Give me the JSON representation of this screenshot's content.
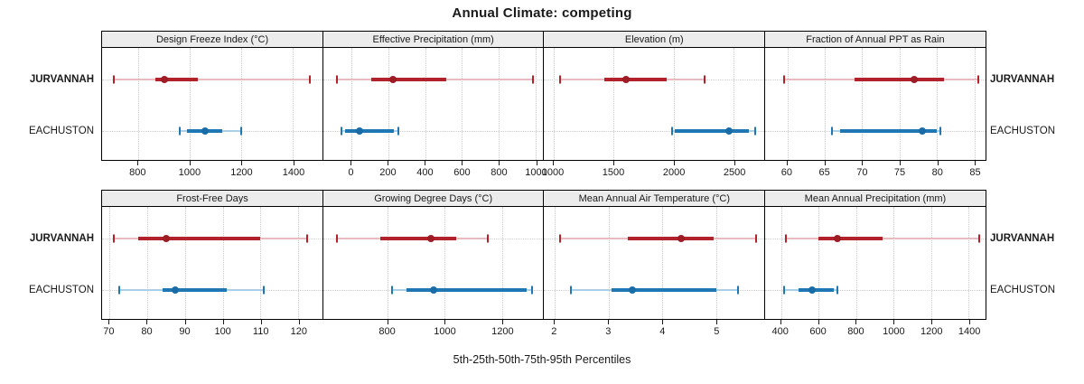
{
  "title": "Annual Climate: competing",
  "caption": "5th-25th-50th-75th-95th Percentiles",
  "row_labels": {
    "left": [
      "JURVANNAH",
      "EACHUSTON",
      "JURVANNAH",
      "EACHUSTON"
    ],
    "right": [
      "JURVANNAH",
      "EACHUSTON",
      "JURVANNAH",
      "EACHUSTON"
    ]
  },
  "groups": [
    {
      "name": "JURVANNAH",
      "line_color": "#b2222b",
      "whisker_color": "#e8bcbe",
      "dot_color": "#9e1c24",
      "bold_label": true
    },
    {
      "name": "EACHUSTON",
      "line_color": "#1f78b4",
      "whisker_color": "#abcfe6",
      "dot_color": "#1a6ca8",
      "bold_label": false
    }
  ],
  "layout": {
    "grid": "2 rows x 4 columns",
    "gridlines": "dotted",
    "percentile_order": [
      "5th",
      "25th",
      "50th",
      "75th",
      "95th"
    ]
  },
  "chart_data": [
    {
      "type": "dotplot",
      "title": "Design Freeze Index (°C)",
      "xlim": [
        660,
        1515
      ],
      "ticks": [
        800,
        1000,
        1200,
        1400
      ],
      "series": [
        {
          "name": "JURVANNAH",
          "percentiles": [
            705,
            865,
            900,
            1030,
            1465
          ]
        },
        {
          "name": "EACHUSTON",
          "percentiles": [
            960,
            990,
            1060,
            1125,
            1200
          ]
        }
      ]
    },
    {
      "type": "dotplot",
      "title": "Effective Precipitation (mm)",
      "xlim": [
        -155,
        1045
      ],
      "ticks": [
        0,
        200,
        400,
        600,
        800,
        1000
      ],
      "series": [
        {
          "name": "JURVANNAH",
          "percentiles": [
            -80,
            105,
            225,
            515,
            985
          ]
        },
        {
          "name": "EACHUSTON",
          "percentiles": [
            -55,
            -35,
            45,
            230,
            255
          ]
        }
      ]
    },
    {
      "type": "dotplot",
      "title": "Elevation (m)",
      "xlim": [
        920,
        2755
      ],
      "ticks": [
        1000,
        1500,
        2000,
        2500
      ],
      "series": [
        {
          "name": "JURVANNAH",
          "percentiles": [
            1050,
            1425,
            1600,
            1940,
            2255
          ]
        },
        {
          "name": "EACHUSTON",
          "percentiles": [
            1985,
            2005,
            2460,
            2625,
            2680
          ]
        }
      ]
    },
    {
      "type": "dotplot",
      "title": "Fraction of Annual PPT as Rain",
      "xlim": [
        57,
        86.5
      ],
      "ticks": [
        60,
        65,
        70,
        75,
        80,
        85
      ],
      "series": [
        {
          "name": "JURVANNAH",
          "percentiles": [
            59.5,
            69,
            77,
            81,
            85.5
          ]
        },
        {
          "name": "EACHUSTON",
          "percentiles": [
            66,
            67,
            78,
            80,
            80.5
          ]
        }
      ]
    },
    {
      "type": "dotplot",
      "title": "Frost-Free Days",
      "xlim": [
        68,
        126.5
      ],
      "ticks": [
        70,
        80,
        90,
        100,
        110,
        120
      ],
      "series": [
        {
          "name": "JURVANNAH",
          "percentiles": [
            71,
            77.5,
            85,
            110,
            122.5
          ]
        },
        {
          "name": "EACHUSTON",
          "percentiles": [
            72.5,
            84,
            87.5,
            101,
            111
          ]
        }
      ]
    },
    {
      "type": "dotplot",
      "title": "Growing Degree Days (°C)",
      "xlim": [
        575,
        1345
      ],
      "ticks": [
        800,
        1000,
        1200
      ],
      "series": [
        {
          "name": "JURVANNAH",
          "percentiles": [
            625,
            775,
            950,
            1040,
            1150
          ]
        },
        {
          "name": "EACHUSTON",
          "percentiles": [
            815,
            865,
            960,
            1285,
            1305
          ]
        }
      ]
    },
    {
      "type": "dotplot",
      "title": "Mean Annual Air Temperature (°C)",
      "xlim": [
        1.8,
        5.9
      ],
      "ticks": [
        2,
        3,
        4,
        5
      ],
      "series": [
        {
          "name": "JURVANNAH",
          "percentiles": [
            2.1,
            3.35,
            4.35,
            4.95,
            5.75
          ]
        },
        {
          "name": "EACHUSTON",
          "percentiles": [
            2.3,
            3.05,
            3.45,
            5.0,
            5.4
          ]
        }
      ]
    },
    {
      "type": "dotplot",
      "title": "Mean Annual Precipitation (mm)",
      "xlim": [
        315,
        1490
      ],
      "ticks": [
        400,
        600,
        800,
        1000,
        1200,
        1400
      ],
      "series": [
        {
          "name": "JURVANNAH",
          "percentiles": [
            425,
            600,
            700,
            940,
            1455
          ]
        },
        {
          "name": "EACHUSTON",
          "percentiles": [
            415,
            495,
            565,
            680,
            700
          ]
        }
      ]
    }
  ]
}
